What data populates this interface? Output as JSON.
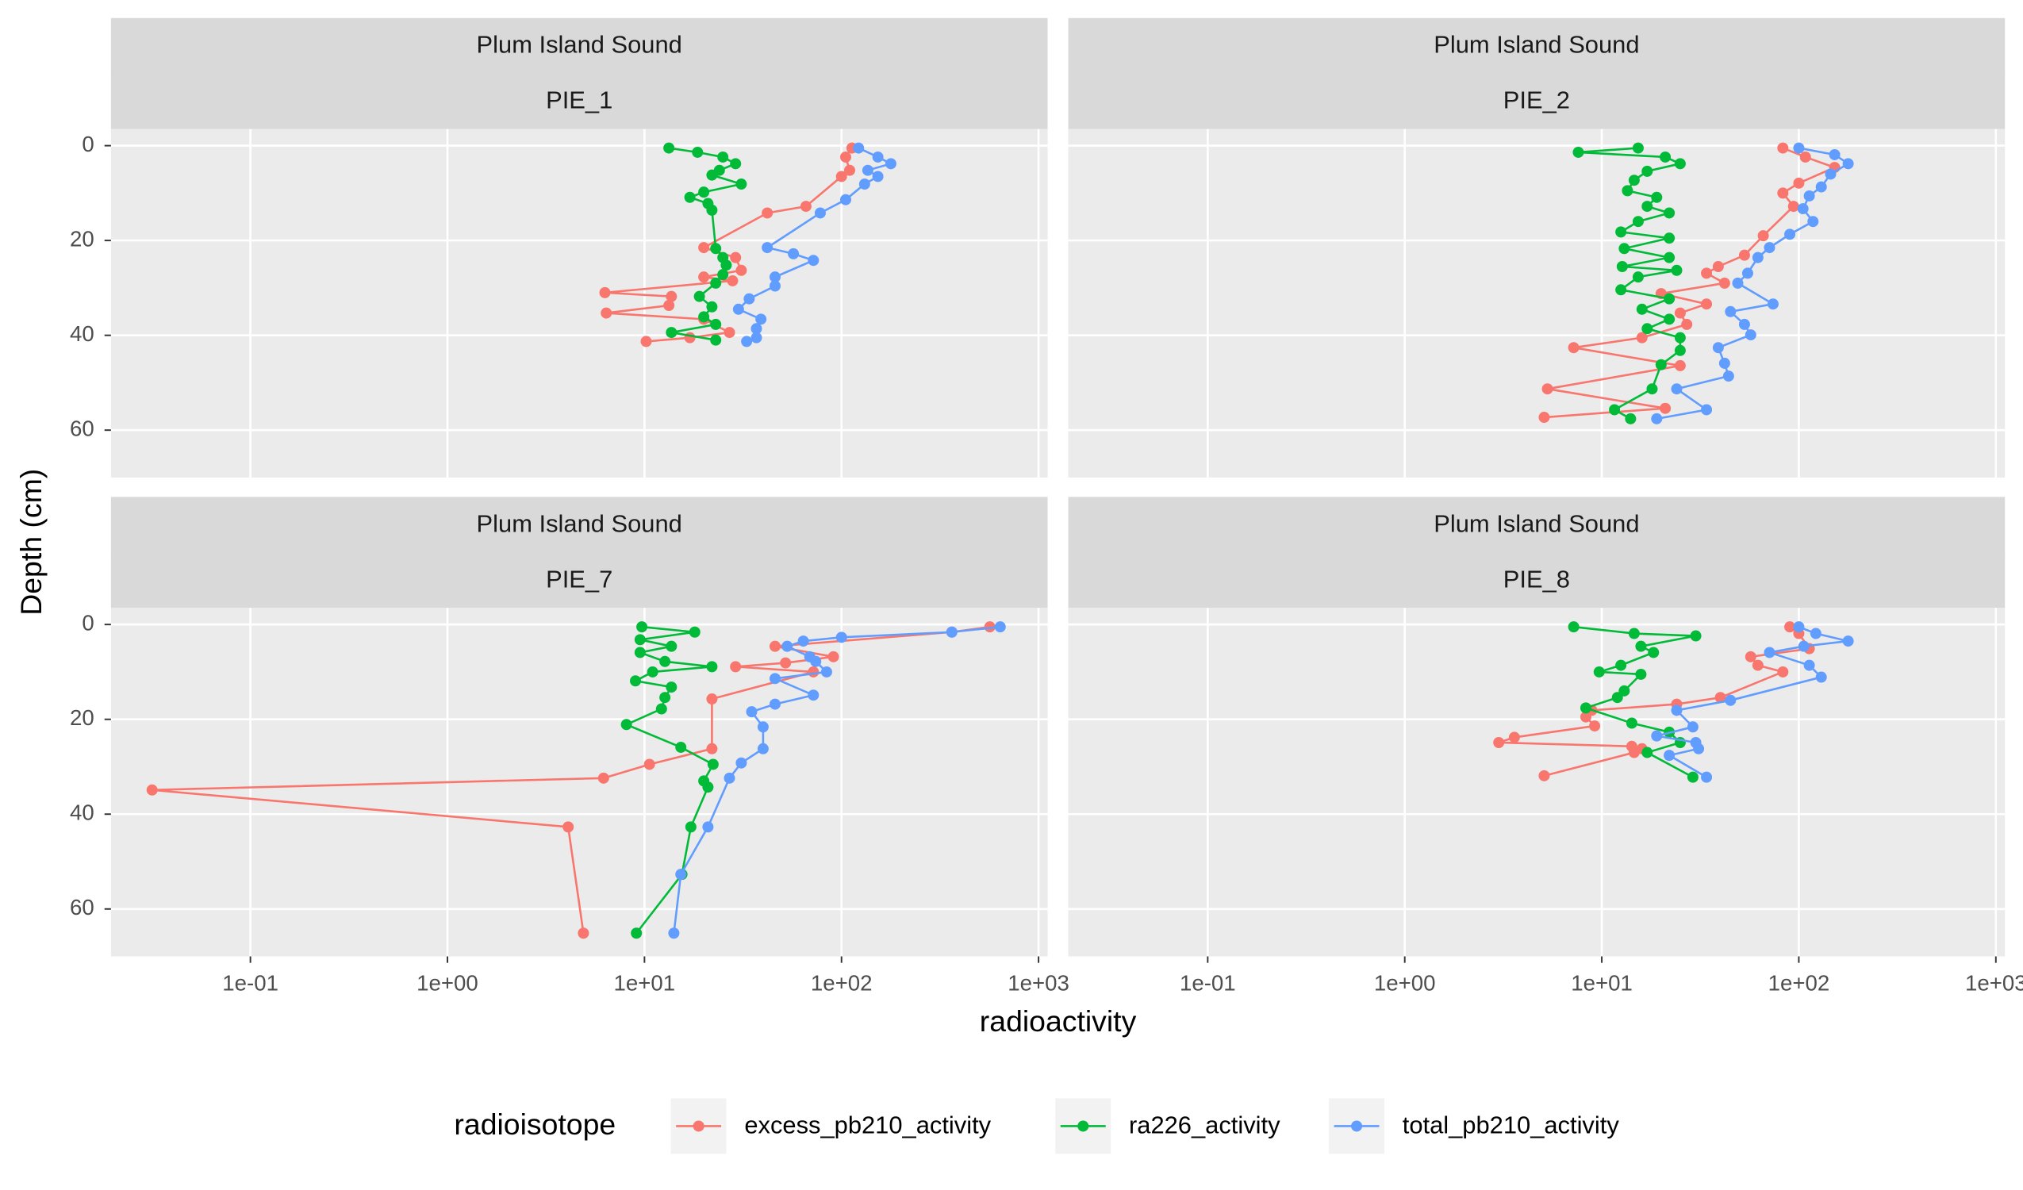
{
  "chart_data": {
    "type": "scatter",
    "connect": true,
    "xscale": "log",
    "y_reversed": true,
    "xlabel": "radioactivity",
    "ylabel": "Depth (cm)",
    "legend_title": "radioisotope",
    "xlim": [
      0.0196,
      1112
    ],
    "ylim": [
      -3.5,
      70
    ],
    "xticks": [
      {
        "value": 0.1,
        "label": "1e-01"
      },
      {
        "value": 1,
        "label": "1e+00"
      },
      {
        "value": 10,
        "label": "1e+01"
      },
      {
        "value": 100,
        "label": "1e+02"
      },
      {
        "value": 1000,
        "label": "1e+03"
      }
    ],
    "yticks": [
      0,
      20,
      40,
      60
    ],
    "grid": true,
    "panels": [
      {
        "title": "Plum Island Sound",
        "subtitle": "PIE_1",
        "series": [
          {
            "name": "excess_pb210_activity",
            "color": "#F8766D",
            "x": [
              113,
              105,
              110,
              100,
              66,
              42,
              20,
              29,
              31,
              20,
              28,
              6.3,
              13.7,
              13.3,
              6.4,
              20,
              27,
              17,
              10.2
            ],
            "values": [
              0.5,
              2.4,
              5.2,
              6.5,
              12.8,
              14.2,
              21.5,
              23.6,
              26.3,
              27.7,
              28.5,
              31,
              31.8,
              33.7,
              35.3,
              36.6,
              39.4,
              40.5,
              41.3
            ]
          },
          {
            "name": "ra226_activity",
            "color": "#00BA38",
            "x": [
              13.3,
              18.6,
              25,
              29,
              24,
              22,
              31,
              20,
              17,
              21,
              22,
              23,
              25,
              26,
              25,
              23,
              19,
              22,
              20,
              23,
              13.7,
              23
            ],
            "values": [
              0.5,
              1.4,
              2.4,
              3.8,
              5.2,
              6.2,
              8.1,
              9.8,
              10.9,
              12.2,
              13.6,
              21.7,
              23.6,
              25.2,
              27.2,
              29,
              31.8,
              34,
              36.1,
              37.7,
              39.4,
              41
            ]
          },
          {
            "name": "total_pb210_activity",
            "color": "#619CFF",
            "x": [
              122,
              153,
              178,
              136,
              153,
              131,
              105,
              78,
              42,
              57,
              72,
              46,
              46,
              34,
              30,
              39,
              37,
              37,
              33
            ],
            "values": [
              0.5,
              2.4,
              3.8,
              5.2,
              6.5,
              8.1,
              11.4,
              14.2,
              21.5,
              22.8,
              24.2,
              27.7,
              29.6,
              32.3,
              34.5,
              36.6,
              38.6,
              40.5,
              41.3
            ]
          }
        ]
      },
      {
        "title": "Plum Island Sound",
        "subtitle": "PIE_2",
        "series": [
          {
            "name": "excess_pb210_activity",
            "color": "#F8766D",
            "x": [
              83,
              108,
              152,
              100,
              83,
              94,
              66,
              53,
              39,
              34,
              42,
              20,
              34,
              25,
              27,
              16,
              7.2,
              25,
              5.3,
              21,
              5.1
            ],
            "values": [
              0.5,
              2.4,
              4.6,
              7.9,
              10,
              12.8,
              19,
              23.1,
              25.5,
              26.9,
              29,
              31.2,
              33.4,
              35.3,
              37.7,
              40.5,
              42.6,
              46.4,
              51.3,
              55.4,
              57.3
            ]
          },
          {
            "name": "ra226_activity",
            "color": "#00BA38",
            "x": [
              15.3,
              7.6,
              21,
              25,
              17,
              14.6,
              13.5,
              19,
              17,
              22,
              15.3,
              12.5,
              22,
              13,
              22,
              12.7,
              24,
              15.3,
              12.5,
              22,
              16,
              22,
              17,
              25,
              25,
              20,
              18,
              11.6,
              14
            ],
            "values": [
              0.5,
              1.4,
              2.4,
              3.8,
              5.4,
              7.3,
              9.5,
              10.9,
              12.8,
              14.2,
              16,
              18.2,
              19.5,
              21.7,
              23.6,
              25.5,
              26.3,
              27.7,
              30.4,
              32.3,
              34.5,
              36.6,
              38.6,
              40.5,
              43.2,
              46.2,
              51.3,
              55.7,
              57.6
            ]
          },
          {
            "name": "total_pb210_activity",
            "color": "#619CFF",
            "x": [
              100,
              152,
              178,
              145,
              130,
              113,
              105,
              118,
              90,
              71,
              62,
              55,
              49,
              74,
              45,
              53,
              57,
              39,
              42,
              44,
              24,
              34,
              19
            ],
            "values": [
              0.5,
              1.9,
              3.8,
              6,
              8.7,
              10.6,
              13.3,
              16,
              18.7,
              21.5,
              23.6,
              26.9,
              29,
              33.4,
              35,
              37.7,
              39.9,
              42.6,
              45.9,
              48.6,
              51.3,
              55.7,
              57.6
            ]
          }
        ]
      },
      {
        "title": "Plum Island Sound",
        "subtitle": "PIE_7",
        "series": [
          {
            "name": "excess_pb210_activity",
            "color": "#F8766D",
            "x": [
              566,
              363,
              46,
              91,
              52,
              29,
              72,
              22,
              22,
              10.6,
              6.2,
              0.0317,
              4.1,
              4.9
            ],
            "values": [
              0.5,
              1.6,
              4.6,
              6.8,
              8.1,
              8.9,
              10,
              15.7,
              26.2,
              29.5,
              32.4,
              34.9,
              42.7,
              65.1
            ]
          },
          {
            "name": "ra226_activity",
            "color": "#00BA38",
            "x": [
              9.7,
              18,
              9.5,
              13.7,
              9.5,
              12.7,
              22,
              11,
              9,
              13.7,
              12.7,
              12.2,
              8.1,
              15.3,
              22.3,
              20,
              21,
              17.2,
              15.5,
              9.1
            ],
            "values": [
              0.5,
              1.6,
              3.2,
              4.6,
              5.9,
              7.8,
              8.9,
              10,
              11.9,
              13.2,
              15.4,
              17.8,
              21.1,
              25.9,
              29.5,
              33,
              34.3,
              42.7,
              52.7,
              65.1
            ]
          },
          {
            "name": "total_pb210_activity",
            "color": "#619CFF",
            "x": [
              639,
              363,
              100,
              64,
              53,
              69,
              74,
              84,
              46,
              72,
              46,
              35,
              40,
              40,
              31,
              27,
              21,
              15.3,
              14.1
            ],
            "values": [
              0.5,
              1.6,
              2.7,
              3.5,
              4.6,
              6.8,
              7.8,
              10,
              11.4,
              14.9,
              16.8,
              18.4,
              21.6,
              26.2,
              29.2,
              32.4,
              42.7,
              52.7,
              65.1
            ]
          }
        ]
      },
      {
        "title": "Plum Island Sound",
        "subtitle": "PIE_8",
        "series": [
          {
            "name": "excess_pb210_activity",
            "color": "#F8766D",
            "x": [
              90,
              100,
              113,
              57,
              62,
              83,
              40,
              24,
              8.9,
              8.3,
              9.2,
              3.6,
              3,
              14.2,
              16,
              14.6,
              5.1
            ],
            "values": [
              0.5,
              1.9,
              5.1,
              6.8,
              8.6,
              10,
              15.4,
              16.8,
              18.1,
              19.5,
              21.4,
              23.8,
              24.9,
              25.7,
              26.2,
              27,
              31.9
            ]
          },
          {
            "name": "ra226_activity",
            "color": "#00BA38",
            "x": [
              7.2,
              14.6,
              30,
              15.8,
              18.3,
              12.5,
              9.7,
              15.8,
              13,
              12,
              8.3,
              14.2,
              22,
              25,
              17,
              29
            ],
            "values": [
              0.5,
              1.9,
              2.4,
              4.6,
              5.9,
              8.6,
              10,
              10.5,
              14,
              15.4,
              17.6,
              20.8,
              22.7,
              24.9,
              27,
              32.2
            ]
          },
          {
            "name": "total_pb210_activity",
            "color": "#619CFF",
            "x": [
              100,
              122,
              178,
              106,
              71,
              113,
              130,
              45,
              24,
              29,
              19,
              30,
              31,
              22,
              34
            ],
            "values": [
              0.5,
              1.9,
              3.5,
              4.6,
              5.9,
              8.6,
              11.1,
              16,
              18.1,
              21.6,
              23.5,
              24.9,
              26.2,
              27.6,
              32.2
            ]
          }
        ]
      }
    ]
  }
}
